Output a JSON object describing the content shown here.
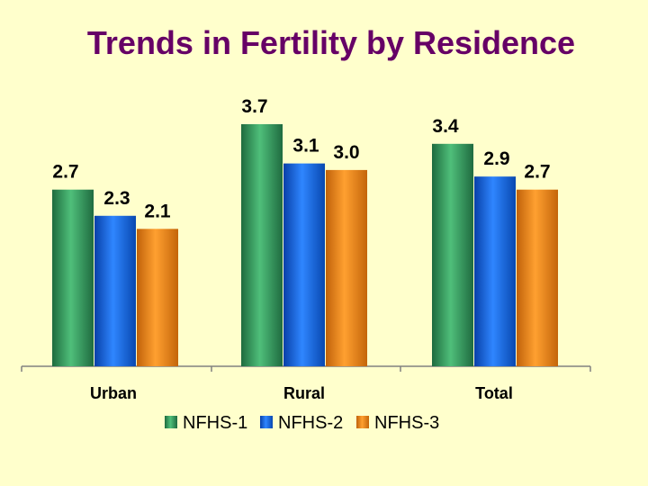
{
  "chart_data": {
    "type": "bar",
    "title": "Trends in Fertility by Residence",
    "categories": [
      "Urban",
      "Rural",
      "Total"
    ],
    "series": [
      {
        "name": "NFHS-1",
        "values": [
          2.7,
          3.7,
          3.4
        ],
        "color": "#2e8b57"
      },
      {
        "name": "NFHS-2",
        "values": [
          2.3,
          3.1,
          2.9
        ],
        "color": "#0a5fd0"
      },
      {
        "name": "NFHS-3",
        "values": [
          2.1,
          3.0,
          2.7
        ],
        "color": "#e8820c"
      }
    ],
    "value_labels": [
      [
        "2.7",
        "3.7",
        "3.4"
      ],
      [
        "2.3",
        "3.1",
        "2.9"
      ],
      [
        "2.1",
        "3.0",
        "2.7"
      ]
    ],
    "ylim": [
      0,
      3.7
    ],
    "xlabel": "",
    "ylabel": "",
    "grid": false,
    "legend_position": "bottom"
  },
  "colors": {
    "background": "#ffffcc",
    "title": "#660066",
    "axis": "#808080"
  }
}
